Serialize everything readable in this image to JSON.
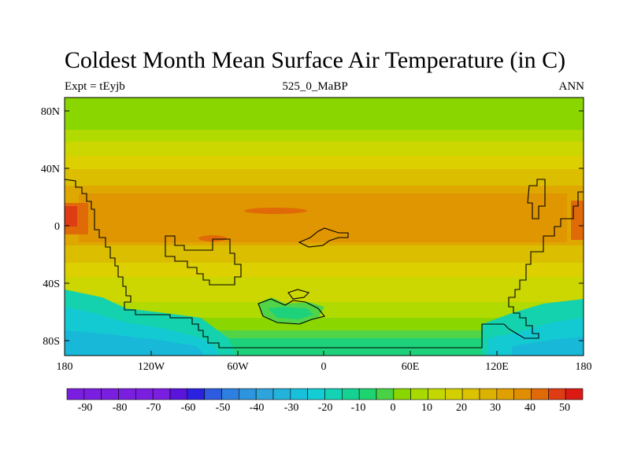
{
  "title": "Coldest Month Mean Surface Air Temperature (in C)",
  "subtitle_left": "Expt = tEyjb",
  "subtitle_center": "525_0_MaBP",
  "subtitle_right": "ANN",
  "y_ticks": [
    "80N",
    "40N",
    "0",
    "40S",
    "80S"
  ],
  "x_ticks": [
    "180",
    "120W",
    "60W",
    "0",
    "60E",
    "120E",
    "180"
  ],
  "colorbar_labels": [
    "-90",
    "-80",
    "-70",
    "-60",
    "-50",
    "-40",
    "-30",
    "-20",
    "-10",
    "0",
    "10",
    "20",
    "30",
    "40",
    "50"
  ],
  "colors": {
    "c_0": "#8ad600",
    "c_5": "#b0da00",
    "c_10": "#ccd600",
    "c_15": "#dcd000",
    "c_20": "#dcbe00",
    "c_25": "#dea800",
    "c_30": "#e09600",
    "c_35": "#e06a08",
    "c_40": "#de3c12",
    "c_m5": "#52d448",
    "c_m10": "#1ed27c",
    "c_m15": "#14d2ae",
    "c_m20": "#14cad2",
    "c_m25": "#18b8d8",
    "c_m30": "#1aa6da"
  },
  "colorbar_colors": [
    "#7a1ee0",
    "#7a1ee0",
    "#7a1ee0",
    "#7a1ee0",
    "#7a1ee0",
    "#7a1ee0",
    "#5a14dc",
    "#2a22e0",
    "#2e5ce0",
    "#2e80e0",
    "#2e94de",
    "#2ea4dc",
    "#22b2dc",
    "#18c0dc",
    "#14ccd4",
    "#14d2b4",
    "#16d292",
    "#1ed470",
    "#4ad246",
    "#8ad600",
    "#a8da00",
    "#c2d800",
    "#d4d000",
    "#dcc200",
    "#dcb200",
    "#e0a000",
    "#e08e00",
    "#e06a08",
    "#de3c12",
    "#dc1a14"
  ]
}
